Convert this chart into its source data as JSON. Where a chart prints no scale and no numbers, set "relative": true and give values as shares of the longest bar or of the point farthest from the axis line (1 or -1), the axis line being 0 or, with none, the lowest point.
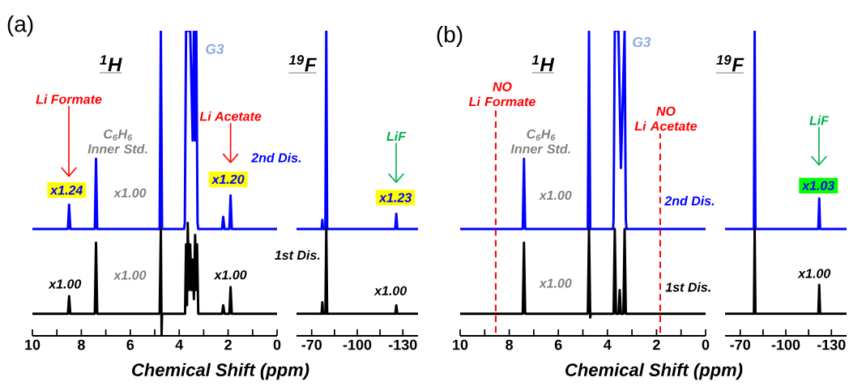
{
  "chart_data": [
    {
      "type": "line",
      "relative": true,
      "title": "(a)",
      "xlabel": "Chemical Shift (ppm)",
      "xlim": [
        10,
        0
      ],
      "xticks": [
        10,
        {
          "value": 9,
          "label": null
        },
        8,
        {
          "value": 7,
          "label": null
        },
        6,
        {
          "value": 5,
          "label": null
        },
        4,
        {
          "value": 3,
          "label": null
        },
        2,
        {
          "value": 1,
          "label": null
        },
        0
      ],
      "series": [
        {
          "name": "2nd Dis.",
          "color": "#0000ff",
          "x": [
            10,
            8.55,
            8.5,
            8.45,
            7.45,
            7.4,
            7.35,
            4.8,
            4.75,
            4.7,
            3.8,
            3.77,
            3.72,
            3.6,
            3.55,
            3.45,
            3.4,
            3.35,
            3.3,
            3.25,
            3.22,
            2.25,
            2.2,
            2.15,
            1.95,
            1.9,
            1.85,
            0
          ],
          "values": [
            0.35,
            0.35,
            0.43,
            0.35,
            0.35,
            0.58,
            0.35,
            0.35,
            1,
            0.35,
            0.35,
            0.37,
            1,
            1,
            1,
            0.64,
            1,
            0.64,
            1,
            0.37,
            0.35,
            0.35,
            0.39,
            0.35,
            0.35,
            0.46,
            0.35,
            0.35
          ]
        },
        {
          "name": "1st Dis.",
          "color": "#000000",
          "x": [
            10,
            8.55,
            8.5,
            8.45,
            7.45,
            7.4,
            7.35,
            4.8,
            4.75,
            4.72,
            4.7,
            3.76,
            3.72,
            3.68,
            3.65,
            3.6,
            3.55,
            3.5,
            3.45,
            3.4,
            3.35,
            3.3,
            3.27,
            3.22,
            2.25,
            2.2,
            2.15,
            1.95,
            1.9,
            1.85,
            0
          ],
          "values": [
            0.072,
            0.072,
            0.13,
            0.072,
            0.072,
            0.305,
            0.072,
            0.072,
            0.35,
            0,
            0.072,
            0.072,
            0.3,
            0.1,
            0.37,
            0.15,
            0.3,
            0.15,
            0.25,
            0.12,
            0.33,
            0.15,
            0.3,
            0.072,
            0.072,
            0.1,
            0.072,
            0.072,
            0.16,
            0.072,
            0.072
          ]
        }
      ],
      "annotations": [
        "$^{1}$H",
        "G3",
        "Li Formate",
        {
          "text": "C$_{6}$H$_{6}$ Inner Std.",
          "x": 7.4,
          "y": 0.58
        },
        "Li Acetate",
        {
          "text": "x1.24",
          "x": 8.5,
          "y": 0.43
        },
        {
          "text": "x1.00",
          "x": 7.4,
          "y": 0.58
        },
        {
          "text": "x1.20",
          "x": 1.9,
          "y": 0.46
        },
        {
          "text": "x1.00",
          "x": 8.5,
          "y": 0.13
        },
        {
          "text": "x1.00",
          "x": 7.4,
          "y": 0.305
        },
        {
          "text": "x1.00",
          "x": 1.9,
          "y": 0.16
        }
      ]
    },
    {
      "type": "line",
      "relative": true,
      "xlim": [
        -60,
        -140
      ],
      "xticks": [
        -70,
        {
          "value": -85,
          "label": null
        },
        -100,
        {
          "value": -115,
          "label": null
        },
        -130
      ],
      "series": [
        {
          "color": "#0000ff",
          "x": [
            -60,
            -76.5,
            -77,
            -77.5,
            -79,
            -79.6,
            -80.2,
            -125,
            -125.7,
            -126.4,
            -140
          ],
          "values": [
            0.35,
            0.35,
            0.38,
            0.35,
            0.35,
            1,
            0.35,
            0.35,
            0.4,
            0.35,
            0.35
          ]
        },
        {
          "color": "#000000",
          "x": [
            -60,
            -76.5,
            -77,
            -77.5,
            -79,
            -79.6,
            -80.2,
            -125,
            -125.7,
            -126.4,
            -140
          ],
          "values": [
            0.072,
            0.072,
            0.11,
            0.072,
            0.072,
            0.35,
            0.072,
            0.072,
            0.1,
            0.072,
            0.072
          ]
        }
      ],
      "annotations": [
        "$^{19}$F",
        "LiF",
        {
          "text": "x1.23",
          "x": -125.7,
          "y": 0.4
        },
        {
          "text": "x1.00",
          "x": -125.7,
          "y": 0.1
        }
      ]
    },
    {
      "type": "line",
      "relative": true,
      "title": "(b)",
      "xlabel": "Chemical Shift (ppm)",
      "xlim": [
        10,
        0
      ],
      "xticks": [
        10,
        {
          "value": 9,
          "label": null
        },
        8,
        {
          "value": 7,
          "label": null
        },
        6,
        {
          "value": 5,
          "label": null
        },
        4,
        {
          "value": 3,
          "label": null
        },
        2,
        {
          "value": 1,
          "label": null
        },
        0
      ],
      "series": [
        {
          "name": "2nd Dis.",
          "color": "#0000ff",
          "x": [
            10,
            7.45,
            7.4,
            7.35,
            4.8,
            4.75,
            4.7,
            3.77,
            3.75,
            3.7,
            3.55,
            3.45,
            3.3,
            3.25,
            3.22,
            0
          ],
          "values": [
            0.35,
            0.35,
            0.58,
            0.35,
            0.35,
            1,
            0.35,
            0.35,
            0.38,
            1,
            1,
            0.55,
            1,
            0.38,
            0.35,
            0.35
          ]
        },
        {
          "name": "1st Dis.",
          "color": "#000000",
          "x": [
            10,
            7.45,
            7.4,
            7.35,
            4.8,
            4.75,
            4.7,
            4.68,
            3.75,
            3.7,
            3.65,
            3.55,
            3.5,
            3.45,
            3.35,
            3.3,
            3.25,
            0
          ],
          "values": [
            0.072,
            0.072,
            0.305,
            0.072,
            0.072,
            0.35,
            0.06,
            0.072,
            0.072,
            0.35,
            0.072,
            0.072,
            0.15,
            0.072,
            0.072,
            0.35,
            0.072,
            0.072
          ]
        }
      ],
      "ref_lines": [
        {
          "axis": "x",
          "value": 8.55,
          "label": "NO Li Formate",
          "color": "#ff0000",
          "line_style": "dashed"
        },
        {
          "axis": "x",
          "value": 1.85,
          "label": "NO Li Acetate",
          "color": "#ff0000",
          "line_style": "dashed"
        }
      ],
      "annotations": [
        "$^{1}$H",
        "G3",
        {
          "text": "C$_{6}$H$_{6}$ Inner Std.",
          "x": 7.4,
          "y": 0.58
        },
        {
          "text": "x1.00",
          "x": 7.4,
          "y": 0.58
        },
        {
          "text": "x1.00",
          "x": 7.4,
          "y": 0.305
        }
      ]
    },
    {
      "type": "line",
      "relative": true,
      "xlim": [
        -60,
        -140
      ],
      "xticks": [
        -70,
        {
          "value": -85,
          "label": null
        },
        -100,
        {
          "value": -115,
          "label": null
        },
        -130
      ],
      "series": [
        {
          "color": "#0000ff",
          "x": [
            -60,
            -79,
            -79.5,
            -80,
            -121.4,
            -122,
            -122.6,
            -140
          ],
          "values": [
            0.35,
            0.35,
            1,
            0.35,
            0.35,
            0.45,
            0.35,
            0.35
          ]
        },
        {
          "color": "#000000",
          "x": [
            -60,
            -79,
            -79.5,
            -80,
            -121.4,
            -122,
            -122.6,
            -140
          ],
          "values": [
            0.072,
            0.072,
            0.35,
            0.072,
            0.072,
            0.167,
            0.072,
            0.072
          ]
        }
      ],
      "annotations": [
        "$^{19}$F",
        "LiF",
        {
          "text": "x1.03",
          "x": -122,
          "y": 0.45
        },
        {
          "text": "x1.00",
          "x": -122,
          "y": 0.167
        }
      ]
    }
  ]
}
